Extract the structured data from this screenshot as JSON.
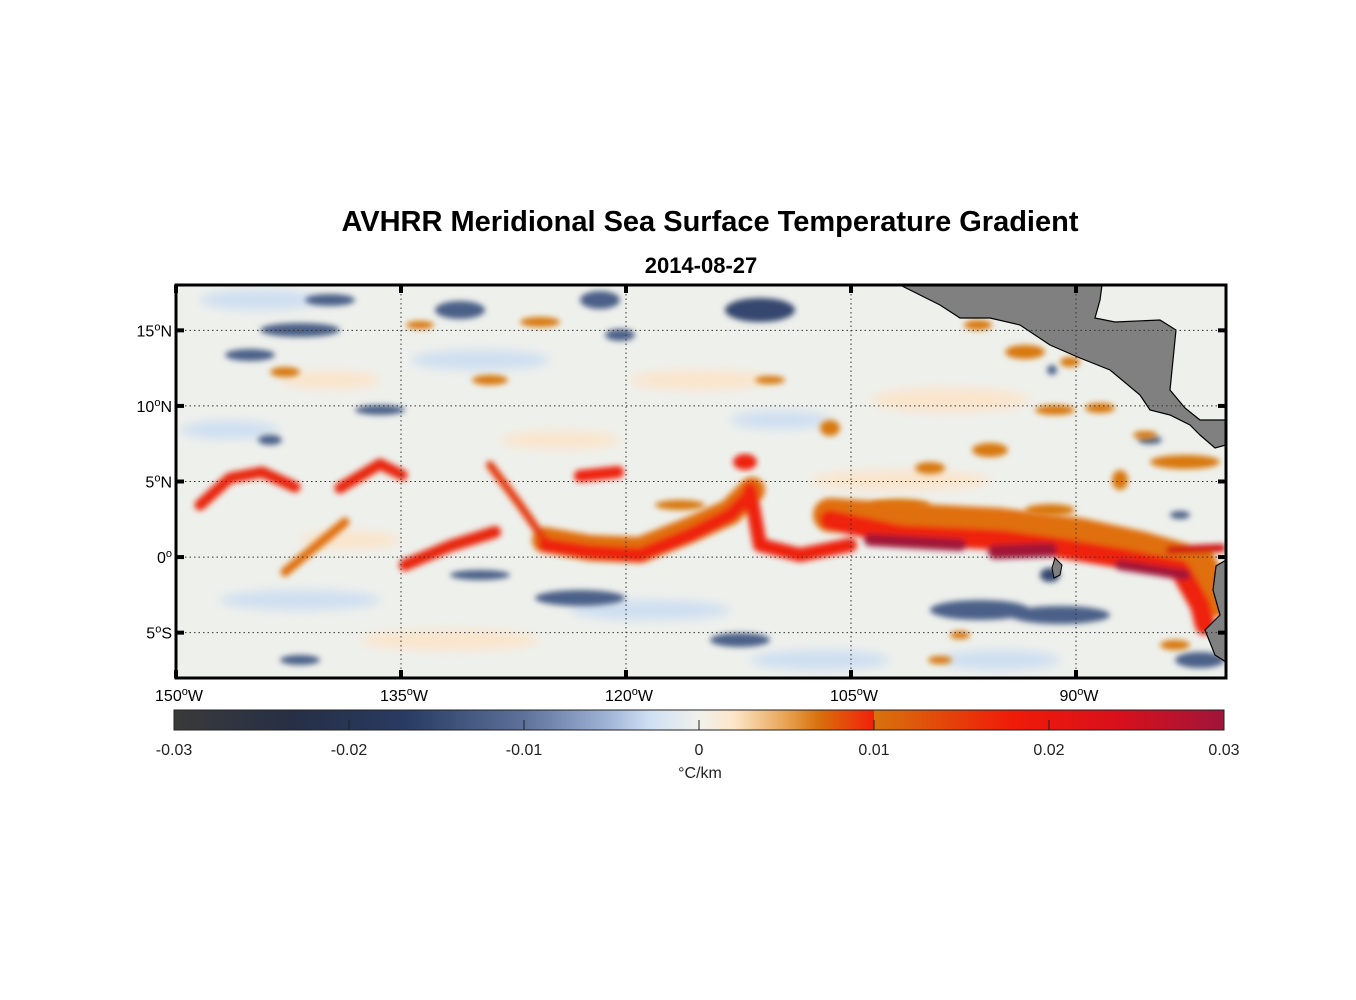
{
  "title": "AVHRR Meridional Sea Surface Temperature Gradient",
  "subtitle": "2014-08-27",
  "chart_data": {
    "type": "heatmap",
    "title": "AVHRR Meridional Sea Surface Temperature Gradient",
    "subtitle": "2014-08-27",
    "lon_range": [
      -150,
      -80
    ],
    "lat_range": [
      -8,
      18
    ],
    "lon_ticks": [
      {
        "value": -150,
        "deg": "150",
        "hem": "W"
      },
      {
        "value": -135,
        "deg": "135",
        "hem": "W"
      },
      {
        "value": -120,
        "deg": "120",
        "hem": "W"
      },
      {
        "value": -105,
        "deg": "105",
        "hem": "W"
      },
      {
        "value": -90,
        "deg": "90",
        "hem": "W"
      }
    ],
    "lat_ticks": [
      {
        "value": 15,
        "deg": "15",
        "hem": "N"
      },
      {
        "value": 10,
        "deg": "10",
        "hem": "N"
      },
      {
        "value": 5,
        "deg": "5",
        "hem": "N"
      },
      {
        "value": 0,
        "deg": "0",
        "hem": ""
      },
      {
        "value": -5,
        "deg": "5",
        "hem": "S"
      }
    ],
    "grid": true,
    "colorbar": {
      "range": [
        -0.03,
        0.03
      ],
      "ticks": [
        -0.03,
        -0.02,
        -0.01,
        0,
        0.01,
        0.02,
        0.03
      ],
      "tick_labels": [
        "-0.03",
        "-0.02",
        "-0.01",
        "0",
        "0.01",
        "0.02",
        "0.03"
      ],
      "label": "°C/km",
      "placement": "bottom",
      "colors": [
        "#3a3a3a",
        "#26395f",
        "#5a6e98",
        "#c9dcf2",
        "#f2f0ea",
        "#fbe3c4",
        "#d8780f",
        "#f01a08",
        "#a0153a"
      ]
    },
    "land_color": "#808080"
  }
}
